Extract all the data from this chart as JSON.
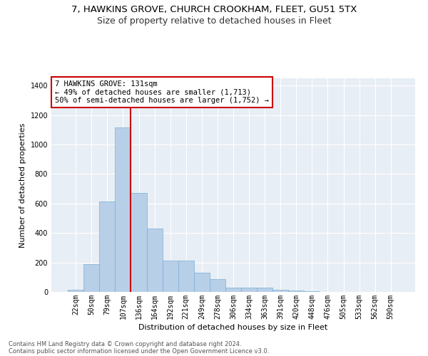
{
  "title1": "7, HAWKINS GROVE, CHURCH CROOKHAM, FLEET, GU51 5TX",
  "title2": "Size of property relative to detached houses in Fleet",
  "xlabel": "Distribution of detached houses by size in Fleet",
  "ylabel": "Number of detached properties",
  "bar_values": [
    15,
    190,
    615,
    1115,
    670,
    430,
    215,
    215,
    130,
    85,
    30,
    28,
    28,
    15,
    10,
    5,
    2,
    1,
    1,
    1,
    1
  ],
  "tick_labels": [
    "22sqm",
    "50sqm",
    "79sqm",
    "107sqm",
    "136sqm",
    "164sqm",
    "192sqm",
    "221sqm",
    "249sqm",
    "278sqm",
    "306sqm",
    "334sqm",
    "363sqm",
    "391sqm",
    "420sqm",
    "448sqm",
    "476sqm",
    "505sqm",
    "533sqm",
    "562sqm",
    "590sqm"
  ],
  "bar_color": "#b8cfe8",
  "bar_edge_color": "#7aafd4",
  "vline_color": "#cc0000",
  "vline_pos": 3.5,
  "annotation_text": "7 HAWKINS GROVE: 131sqm\n← 49% of detached houses are smaller (1,713)\n50% of semi-detached houses are larger (1,752) →",
  "annotation_box_facecolor": "#ffffff",
  "annotation_box_edgecolor": "#cc0000",
  "ylim": [
    0,
    1450
  ],
  "yticks": [
    0,
    200,
    400,
    600,
    800,
    1000,
    1200,
    1400
  ],
  "footer1": "Contains HM Land Registry data © Crown copyright and database right 2024.",
  "footer2": "Contains public sector information licensed under the Open Government Licence v3.0.",
  "bg_color": "#e8eef5",
  "grid_color": "#ffffff",
  "title1_fontsize": 9.5,
  "title2_fontsize": 9,
  "label_fontsize": 8,
  "tick_fontsize": 7,
  "annot_fontsize": 7.5
}
